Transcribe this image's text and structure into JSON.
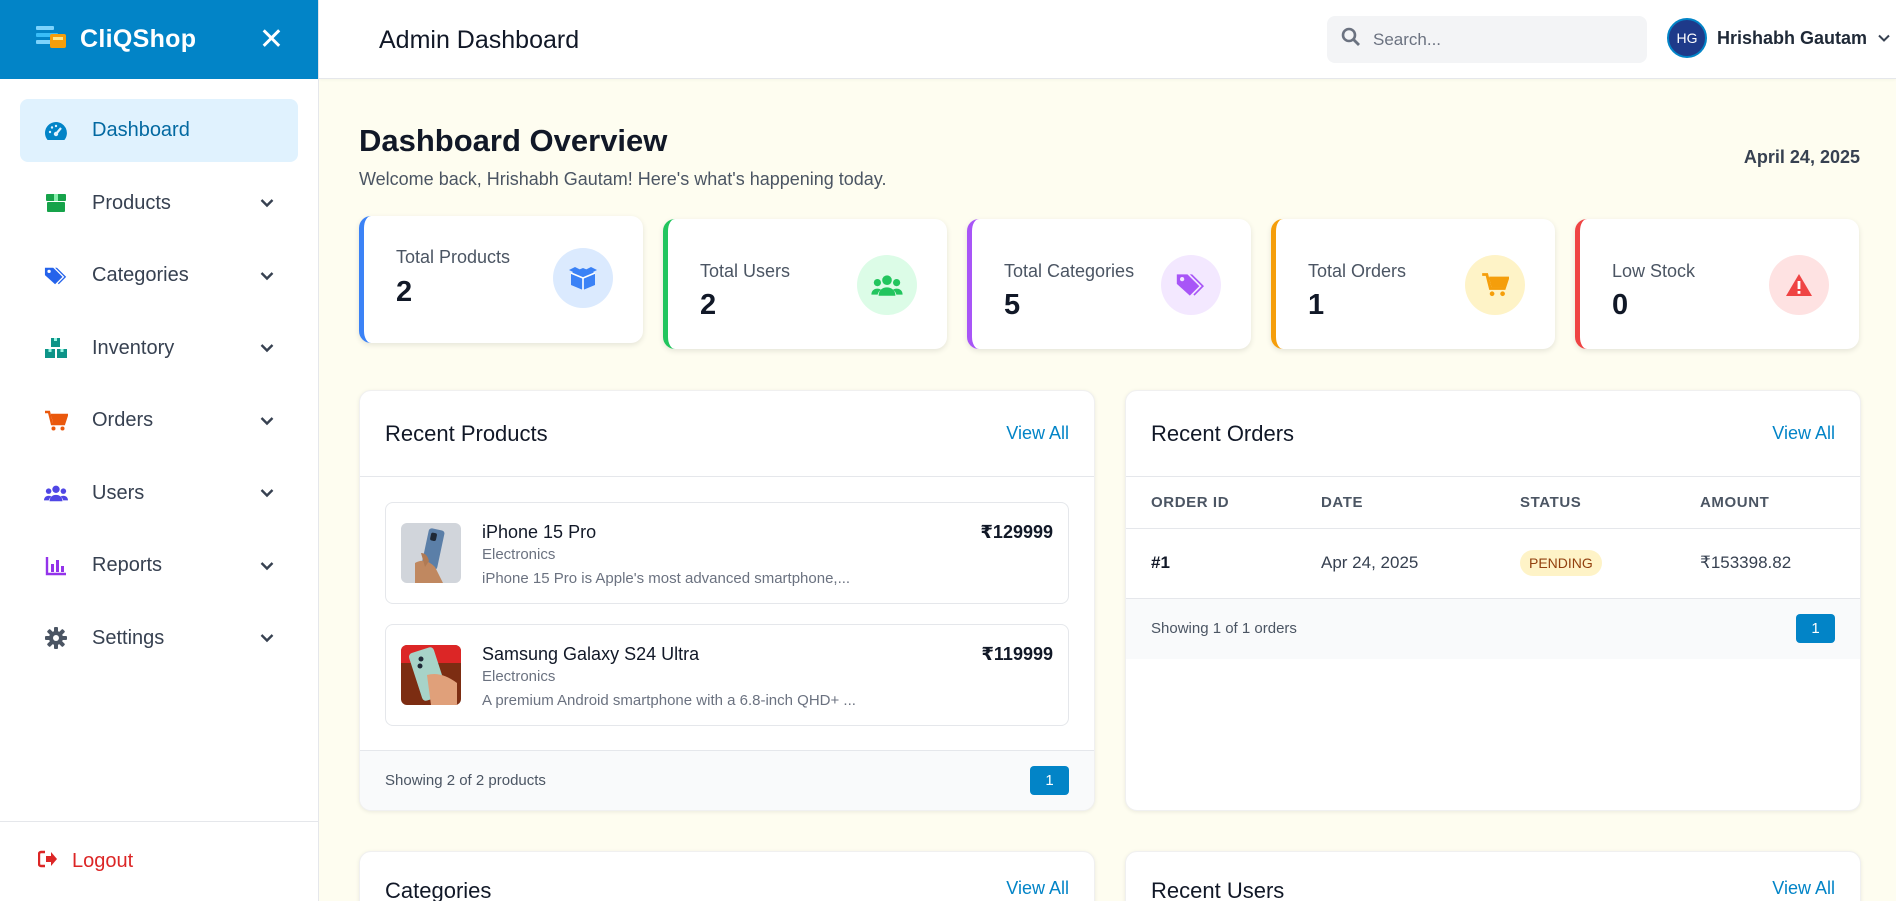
{
  "app": {
    "name": "CliQShop",
    "close_symbol": "✕"
  },
  "sidebar": {
    "items": [
      {
        "label": "Dashboard",
        "icon": "gauge-icon",
        "color": "#0284c7"
      },
      {
        "label": "Products",
        "icon": "box-icon",
        "color": "#16a34a"
      },
      {
        "label": "Categories",
        "icon": "tags-icon",
        "color": "#2563eb"
      },
      {
        "label": "Inventory",
        "icon": "boxes-icon",
        "color": "#0d9488"
      },
      {
        "label": "Orders",
        "icon": "cart-icon",
        "color": "#ea580c"
      },
      {
        "label": "Users",
        "icon": "users-icon",
        "color": "#4f46e5"
      },
      {
        "label": "Reports",
        "icon": "chart-icon",
        "color": "#9333ea"
      },
      {
        "label": "Settings",
        "icon": "gear-icon",
        "color": "#4b5563"
      }
    ],
    "logout_label": "Logout"
  },
  "header": {
    "title": "Admin Dashboard",
    "search_placeholder": "Search...",
    "user_initials": "HG",
    "user_name": "Hrishabh Gautam"
  },
  "overview": {
    "title": "Dashboard Overview",
    "subtitle": "Welcome back, Hrishabh Gautam! Here's what's happening today.",
    "date": "April 24, 2025"
  },
  "stats": [
    {
      "label": "Total Products",
      "value": "2",
      "border": "#3b82f6",
      "bg": "#dbeafe",
      "fg": "#3b82f6",
      "icon": "box-open-icon"
    },
    {
      "label": "Total Users",
      "value": "2",
      "border": "#22c55e",
      "bg": "#dcfce7",
      "fg": "#22c55e",
      "icon": "users-icon"
    },
    {
      "label": "Total Categories",
      "value": "5",
      "border": "#a855f7",
      "bg": "#f3e8ff",
      "fg": "#a855f7",
      "icon": "tags-icon"
    },
    {
      "label": "Total Orders",
      "value": "1",
      "border": "#f59e0b",
      "bg": "#fef3c7",
      "fg": "#f59e0b",
      "icon": "cart-icon"
    },
    {
      "label": "Low Stock",
      "value": "0",
      "border": "#ef4444",
      "bg": "#fee2e2",
      "fg": "#ef4444",
      "icon": "warning-icon"
    }
  ],
  "recent_products": {
    "title": "Recent Products",
    "view_all": "View All",
    "items": [
      {
        "name": "iPhone 15 Pro",
        "category": "Electronics",
        "description": "iPhone 15 Pro is Apple's most advanced smartphone,...",
        "price": "₹129999"
      },
      {
        "name": "Samsung Galaxy S24 Ultra",
        "category": "Electronics",
        "description": "A premium Android smartphone with a 6.8-inch QHD+ ...",
        "price": "₹119999"
      }
    ],
    "footer": "Showing 2 of 2 products",
    "page": "1"
  },
  "recent_orders": {
    "title": "Recent Orders",
    "view_all": "View All",
    "columns": [
      "ORDER ID",
      "DATE",
      "STATUS",
      "AMOUNT"
    ],
    "rows": [
      {
        "id": "#1",
        "date": "Apr 24, 2025",
        "status": "PENDING",
        "amount": "₹153398.82"
      }
    ],
    "footer": "Showing 1 of 1 orders",
    "page": "1"
  },
  "categories_card": {
    "title": "Categories",
    "view_all": "View All"
  },
  "recent_users_card": {
    "title": "Recent Users",
    "view_all": "View All"
  }
}
